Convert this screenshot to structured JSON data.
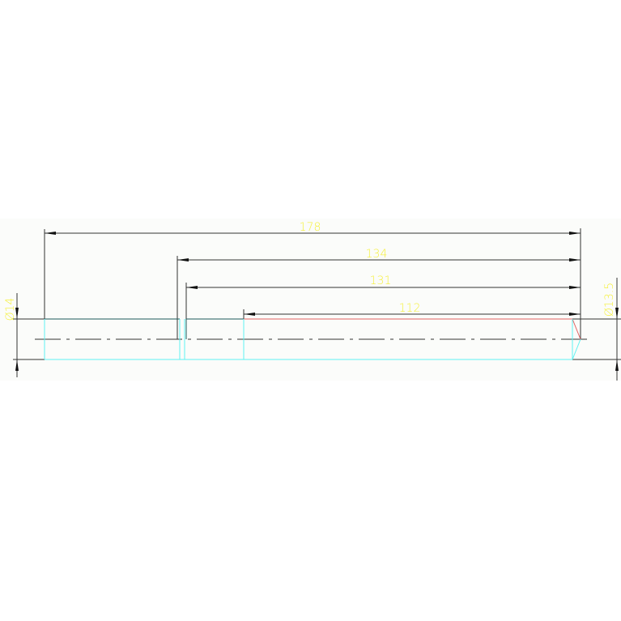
{
  "drawing": {
    "colors": {
      "dimension_text": "#f5f03c",
      "dimension_line": "#2a2a2a",
      "outline_cyan": "#5ff2f2",
      "outline_teal": "#1e5a5a",
      "outline_red": "#e06060",
      "background": "#fbfcfa"
    },
    "dimensions": {
      "length_total": "178",
      "length_2": "134",
      "length_3": "131",
      "length_4": "112",
      "diameter_left": "Ø14",
      "diameter_right": "Ø13.5"
    }
  }
}
